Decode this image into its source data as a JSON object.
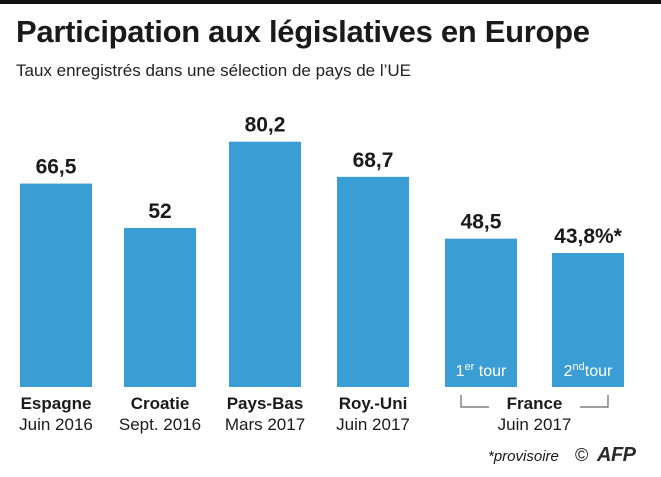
{
  "title": "Participation aux législatives en Europe",
  "subtitle": "Taux enregistrés dans une sélection de pays de l’UE",
  "footnote": "*provisoire",
  "copyright_symbol": "©",
  "brand": "AFP",
  "colors": {
    "bar": "#3a9ed4",
    "text": "#1a1a1a",
    "bracket": "#666666"
  },
  "chart_data": {
    "type": "bar",
    "ylim": [
      0,
      85
    ],
    "grid": false,
    "bars": [
      {
        "label": "Espagne",
        "date": "Juin 2016",
        "value": 66.5,
        "value_label": "66,5",
        "inner_label": "",
        "inner_sup": "",
        "inner_rest": ""
      },
      {
        "label": "Croatie",
        "date": "Sept. 2016",
        "value": 52,
        "value_label": "52",
        "inner_label": "",
        "inner_sup": "",
        "inner_rest": ""
      },
      {
        "label": "Pays-Bas",
        "date": "Mars 2017",
        "value": 80.2,
        "value_label": "80,2",
        "inner_label": "",
        "inner_sup": "",
        "inner_rest": ""
      },
      {
        "label": "Roy.-Uni",
        "date": "Juin 2017",
        "value": 68.7,
        "value_label": "68,7",
        "inner_label": "",
        "inner_sup": "",
        "inner_rest": ""
      },
      {
        "label": "",
        "date": "",
        "value": 48.5,
        "value_label": "48,5",
        "inner_label": "1",
        "inner_sup": "er",
        "inner_rest": " tour"
      },
      {
        "label": "",
        "date": "",
        "value": 43.8,
        "value_label": "43,8%*",
        "inner_label": "2",
        "inner_sup": "nd",
        "inner_rest": "tour"
      }
    ],
    "group": {
      "label": "France",
      "date": "Juin 2017",
      "members": [
        4,
        5
      ]
    }
  }
}
